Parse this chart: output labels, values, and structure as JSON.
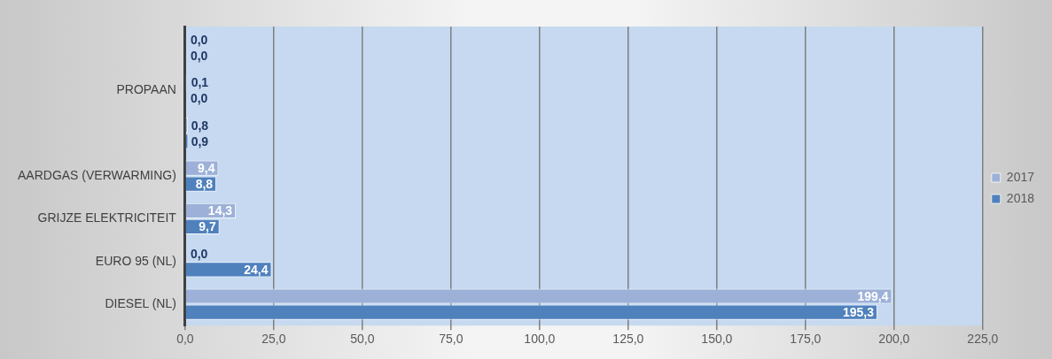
{
  "chart_data": {
    "type": "bar",
    "orientation": "horizontal",
    "categories": [
      null,
      "PROPAAN",
      null,
      "AARDGAS (VERWARMING)",
      "GRIJZE ELEKTRICITEIT",
      "EURO 95 (NL)",
      "DIESEL (NL)"
    ],
    "series": [
      {
        "name": "2017",
        "color": "#9db1d8",
        "values": [
          0.0,
          0.1,
          0.8,
          9.4,
          14.3,
          0.0,
          199.4
        ],
        "value_labels": [
          "0,0",
          "0,1",
          "0,8",
          "9,4",
          "14,3",
          "0,0",
          "199,4"
        ]
      },
      {
        "name": "2018",
        "color": "#4f81bd",
        "values": [
          0.0,
          0.0,
          0.9,
          8.8,
          9.7,
          24.4,
          195.3
        ],
        "value_labels": [
          "0,0",
          "0,0",
          "0,9",
          "8,8",
          "9,7",
          "24,4",
          "195,3"
        ]
      }
    ],
    "xlim": [
      0,
      225
    ],
    "xticks": [
      {
        "value": 0,
        "label": "0,0"
      },
      {
        "value": 25,
        "label": "25,0"
      },
      {
        "value": 50,
        "label": "50,0"
      },
      {
        "value": 75,
        "label": "75,0"
      },
      {
        "value": 100,
        "label": "100,0"
      },
      {
        "value": 125,
        "label": "125,0"
      },
      {
        "value": 150,
        "label": "150,0"
      },
      {
        "value": 175,
        "label": "175,0"
      },
      {
        "value": 200,
        "label": "200,0"
      },
      {
        "value": 225,
        "label": "225,0"
      }
    ],
    "grid": "x",
    "legend": "right"
  }
}
